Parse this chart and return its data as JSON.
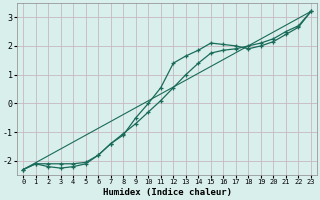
{
  "xlabel": "Humidex (Indice chaleur)",
  "xlim": [
    -0.5,
    23.5
  ],
  "ylim": [
    -2.5,
    3.5
  ],
  "yticks": [
    -2,
    -1,
    0,
    1,
    2,
    3
  ],
  "xticks": [
    0,
    1,
    2,
    3,
    4,
    5,
    6,
    7,
    8,
    9,
    10,
    11,
    12,
    13,
    14,
    15,
    16,
    17,
    18,
    19,
    20,
    21,
    22,
    23
  ],
  "background_color": "#d9efec",
  "grid_color": "#c8b8c0",
  "line_color": "#1a6b5a",
  "line1_x": [
    0,
    1,
    2,
    3,
    4,
    5,
    6,
    7,
    8,
    9,
    10,
    11,
    12,
    13,
    14,
    15,
    16,
    17,
    18,
    19,
    20,
    21,
    22,
    23
  ],
  "line1_y": [
    -2.3,
    -2.1,
    -2.2,
    -2.25,
    -2.2,
    -2.1,
    -1.8,
    -1.4,
    -1.1,
    -0.5,
    0.0,
    0.55,
    1.4,
    1.65,
    1.85,
    2.1,
    2.05,
    2.0,
    1.9,
    2.0,
    2.15,
    2.4,
    2.65,
    3.2
  ],
  "line2_x": [
    0,
    1,
    2,
    3,
    4,
    5,
    6,
    7,
    8,
    9,
    10,
    11,
    12,
    13,
    14,
    15,
    16,
    17,
    18,
    19,
    20,
    21,
    22,
    23
  ],
  "line2_y": [
    -2.3,
    -2.1,
    -2.1,
    -2.1,
    -2.1,
    -2.05,
    -1.8,
    -1.4,
    -1.05,
    -0.7,
    -0.3,
    0.1,
    0.55,
    1.0,
    1.4,
    1.75,
    1.85,
    1.9,
    2.0,
    2.1,
    2.25,
    2.5,
    2.7,
    3.2
  ],
  "line3_x": [
    0,
    23
  ],
  "line3_y": [
    -2.3,
    3.2
  ]
}
